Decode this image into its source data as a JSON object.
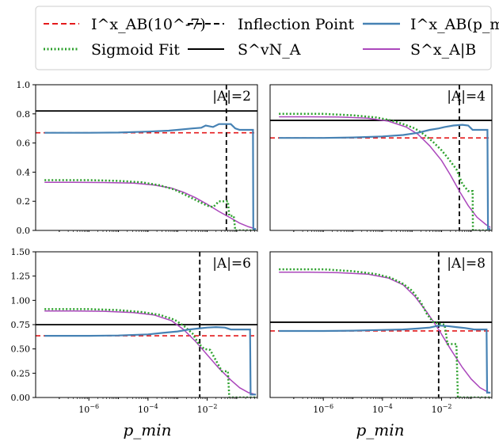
{
  "chart_data": {
    "type": "line",
    "xscale": "log",
    "xlabel": "p_min",
    "legend": {
      "placement": "top",
      "entries": [
        {
          "label": "I^x_AB(10^-7)",
          "color": "#e41a1c",
          "style": "dashed"
        },
        {
          "label": "Sigmoid Fit",
          "color": "#2ca02c",
          "style": "dotted"
        },
        {
          "label": "Inflection Point",
          "color": "#000000",
          "style": "dashed"
        },
        {
          "label": "S^vN_A",
          "color": "#000000",
          "style": "solid"
        },
        {
          "label": "I^x_AB(p_min)",
          "color": "#4682b4",
          "style": "solid"
        },
        {
          "label": "S^x_A|B",
          "color": "#ab47bc",
          "style": "solid"
        }
      ]
    },
    "panels": [
      {
        "label": "|A|=2",
        "ylim": [
          0,
          1.0
        ],
        "yticks": [
          0,
          0.2,
          0.4,
          0.6,
          0.8,
          1.0
        ],
        "show_yticks": true,
        "show_xticks": false,
        "xlim_log": [
          -7.8,
          -0.3
        ],
        "inflection_log": -1.35,
        "svn": 0.82,
        "iab_ref": 0.67,
        "iab_curve": [
          [
            -7.5,
            0.67
          ],
          [
            -6,
            0.67
          ],
          [
            -5,
            0.672
          ],
          [
            -4,
            0.678
          ],
          [
            -3.3,
            0.685
          ],
          [
            -3,
            0.69
          ],
          [
            -2.5,
            0.7
          ],
          [
            -2.2,
            0.705
          ],
          [
            -2.05,
            0.72
          ],
          [
            -1.8,
            0.71
          ],
          [
            -1.6,
            0.73
          ],
          [
            -1.2,
            0.73
          ],
          [
            -1.05,
            0.7
          ],
          [
            -0.9,
            0.69
          ],
          [
            -0.45,
            0.69
          ],
          [
            -0.44,
            0.01
          ],
          [
            -0.35,
            0.01
          ]
        ],
        "sigmoid_curve": [
          [
            -7.5,
            0.345
          ],
          [
            -6,
            0.345
          ],
          [
            -5,
            0.34
          ],
          [
            -4.2,
            0.33
          ],
          [
            -3.6,
            0.31
          ],
          [
            -3.1,
            0.28
          ],
          [
            -2.7,
            0.24
          ],
          [
            -2.3,
            0.2
          ],
          [
            -2.0,
            0.17
          ],
          [
            -1.8,
            0.16
          ],
          [
            -1.6,
            0.2
          ],
          [
            -1.3,
            0.2
          ],
          [
            -1.25,
            0.1
          ],
          [
            -1.1,
            0.1
          ],
          [
            -1.05,
            0.0
          ],
          [
            -0.35,
            0.0
          ]
        ],
        "sa_b_curve": [
          [
            -7.5,
            0.33
          ],
          [
            -6.5,
            0.33
          ],
          [
            -5.5,
            0.329
          ],
          [
            -4.5,
            0.325
          ],
          [
            -3.8,
            0.312
          ],
          [
            -3.2,
            0.29
          ],
          [
            -2.8,
            0.262
          ],
          [
            -2.4,
            0.225
          ],
          [
            -2.0,
            0.18
          ],
          [
            -1.6,
            0.13
          ],
          [
            -1.2,
            0.085
          ],
          [
            -0.9,
            0.05
          ],
          [
            -0.6,
            0.025
          ],
          [
            -0.35,
            0.01
          ]
        ]
      },
      {
        "label": "|A|=4",
        "ylim": [
          0,
          1.0
        ],
        "yticks": [],
        "show_yticks": false,
        "show_xticks": false,
        "xlim_log": [
          -7.8,
          -0.3
        ],
        "inflection_log": -1.4,
        "svn": 0.755,
        "iab_ref": 0.635,
        "iab_curve": [
          [
            -7.5,
            0.635
          ],
          [
            -6,
            0.635
          ],
          [
            -5,
            0.638
          ],
          [
            -4,
            0.645
          ],
          [
            -3.3,
            0.655
          ],
          [
            -2.8,
            0.67
          ],
          [
            -2.4,
            0.69
          ],
          [
            -2.1,
            0.7
          ],
          [
            -1.9,
            0.71
          ],
          [
            -1.6,
            0.72
          ],
          [
            -1.3,
            0.725
          ],
          [
            -1.1,
            0.72
          ],
          [
            -0.95,
            0.69
          ],
          [
            -0.45,
            0.69
          ],
          [
            -0.43,
            0.01
          ],
          [
            -0.35,
            0.01
          ]
        ],
        "sigmoid_curve": [
          [
            -7.5,
            0.8
          ],
          [
            -6,
            0.8
          ],
          [
            -5,
            0.79
          ],
          [
            -4.2,
            0.775
          ],
          [
            -3.7,
            0.755
          ],
          [
            -3.3,
            0.73
          ],
          [
            -2.9,
            0.7
          ],
          [
            -2.6,
            0.66
          ],
          [
            -2.3,
            0.61
          ],
          [
            -2.0,
            0.55
          ],
          [
            -1.8,
            0.5
          ],
          [
            -1.5,
            0.42
          ],
          [
            -1.3,
            0.32
          ],
          [
            -1.1,
            0.27
          ],
          [
            -0.95,
            0.27
          ],
          [
            -0.94,
            0.0
          ],
          [
            -0.35,
            0.0
          ]
        ],
        "sa_b_curve": [
          [
            -7.5,
            0.78
          ],
          [
            -6.5,
            0.78
          ],
          [
            -5.5,
            0.778
          ],
          [
            -4.5,
            0.77
          ],
          [
            -3.8,
            0.75
          ],
          [
            -3.2,
            0.71
          ],
          [
            -2.8,
            0.66
          ],
          [
            -2.4,
            0.58
          ],
          [
            -2.0,
            0.48
          ],
          [
            -1.7,
            0.38
          ],
          [
            -1.4,
            0.27
          ],
          [
            -1.1,
            0.17
          ],
          [
            -0.8,
            0.09
          ],
          [
            -0.5,
            0.04
          ],
          [
            -0.35,
            0.02
          ]
        ]
      },
      {
        "label": "|A|=6",
        "ylim": [
          0,
          1.5
        ],
        "yticks": [
          0,
          0.25,
          0.5,
          0.75,
          1.0,
          1.25,
          1.5
        ],
        "show_yticks": true,
        "show_xticks": true,
        "xlim_log": [
          -7.8,
          -0.3
        ],
        "xticks_log": [
          -6,
          -4,
          -2
        ],
        "inflection_log": -2.25,
        "svn": 0.75,
        "iab_ref": 0.635,
        "iab_curve": [
          [
            -7.5,
            0.635
          ],
          [
            -6,
            0.635
          ],
          [
            -5,
            0.638
          ],
          [
            -4,
            0.65
          ],
          [
            -3.5,
            0.665
          ],
          [
            -3,
            0.68
          ],
          [
            -2.6,
            0.7
          ],
          [
            -2.3,
            0.71
          ],
          [
            -2.0,
            0.72
          ],
          [
            -1.7,
            0.725
          ],
          [
            -1.4,
            0.72
          ],
          [
            -1.2,
            0.7
          ],
          [
            -1.0,
            0.7
          ],
          [
            -0.55,
            0.7
          ],
          [
            -0.53,
            0.03
          ],
          [
            -0.35,
            0.03
          ]
        ],
        "sigmoid_curve": [
          [
            -7.5,
            0.91
          ],
          [
            -6,
            0.91
          ],
          [
            -5,
            0.9
          ],
          [
            -4.2,
            0.88
          ],
          [
            -3.6,
            0.85
          ],
          [
            -3.1,
            0.8
          ],
          [
            -2.8,
            0.74
          ],
          [
            -2.5,
            0.66
          ],
          [
            -2.3,
            0.56
          ],
          [
            -2.1,
            0.5
          ],
          [
            -1.9,
            0.49
          ],
          [
            -1.7,
            0.38
          ],
          [
            -1.5,
            0.27
          ],
          [
            -1.3,
            0.27
          ],
          [
            -1.25,
            0.0
          ],
          [
            -0.35,
            0.0
          ]
        ],
        "sa_b_curve": [
          [
            -7.5,
            0.89
          ],
          [
            -6.5,
            0.89
          ],
          [
            -5.5,
            0.888
          ],
          [
            -4.5,
            0.875
          ],
          [
            -3.8,
            0.85
          ],
          [
            -3.2,
            0.79
          ],
          [
            -2.8,
            0.7
          ],
          [
            -2.4,
            0.58
          ],
          [
            -2.0,
            0.44
          ],
          [
            -1.6,
            0.3
          ],
          [
            -1.2,
            0.18
          ],
          [
            -0.9,
            0.1
          ],
          [
            -0.6,
            0.05
          ],
          [
            -0.35,
            0.03
          ]
        ]
      },
      {
        "label": "|A|=8",
        "ylim": [
          0,
          1.5
        ],
        "yticks": [],
        "show_yticks": false,
        "show_xticks": true,
        "xlim_log": [
          -7.8,
          -0.3
        ],
        "xticks_log": [
          -6,
          -4,
          -2
        ],
        "inflection_log": -2.1,
        "svn": 0.775,
        "iab_ref": 0.685,
        "iab_curve": [
          [
            -7.5,
            0.685
          ],
          [
            -6,
            0.685
          ],
          [
            -5,
            0.688
          ],
          [
            -4,
            0.695
          ],
          [
            -3.3,
            0.7
          ],
          [
            -2.8,
            0.71
          ],
          [
            -2.4,
            0.72
          ],
          [
            -2.1,
            0.74
          ],
          [
            -1.8,
            0.735
          ],
          [
            -1.5,
            0.725
          ],
          [
            -1.2,
            0.715
          ],
          [
            -0.9,
            0.7
          ],
          [
            -0.6,
            0.7
          ],
          [
            -0.48,
            0.7
          ],
          [
            -0.46,
            0.05
          ],
          [
            -0.35,
            0.05
          ]
        ],
        "sigmoid_curve": [
          [
            -7.5,
            1.32
          ],
          [
            -6,
            1.32
          ],
          [
            -5,
            1.3
          ],
          [
            -4.2,
            1.27
          ],
          [
            -3.7,
            1.23
          ],
          [
            -3.3,
            1.17
          ],
          [
            -3.0,
            1.1
          ],
          [
            -2.7,
            0.98
          ],
          [
            -2.5,
            0.86
          ],
          [
            -2.3,
            0.78
          ],
          [
            -2.1,
            0.76
          ],
          [
            -1.9,
            0.75
          ],
          [
            -1.8,
            0.55
          ],
          [
            -1.5,
            0.55
          ],
          [
            -1.45,
            0.0
          ],
          [
            -0.35,
            0.0
          ]
        ],
        "sa_b_curve": [
          [
            -7.5,
            1.29
          ],
          [
            -6.5,
            1.29
          ],
          [
            -5.5,
            1.285
          ],
          [
            -4.5,
            1.27
          ],
          [
            -3.8,
            1.23
          ],
          [
            -3.3,
            1.16
          ],
          [
            -2.9,
            1.04
          ],
          [
            -2.5,
            0.88
          ],
          [
            -2.1,
            0.7
          ],
          [
            -1.7,
            0.5
          ],
          [
            -1.3,
            0.31
          ],
          [
            -1.0,
            0.19
          ],
          [
            -0.7,
            0.1
          ],
          [
            -0.4,
            0.05
          ]
        ]
      }
    ]
  }
}
